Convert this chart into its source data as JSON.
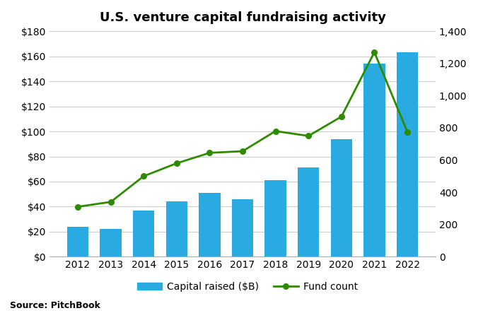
{
  "title": "U.S. venture capital fundraising activity",
  "years": [
    2012,
    2013,
    2014,
    2015,
    2016,
    2017,
    2018,
    2019,
    2020,
    2021,
    2022
  ],
  "capital_raised": [
    24,
    22,
    37,
    44,
    51,
    46,
    61,
    71,
    94,
    154,
    163
  ],
  "fund_count": [
    310,
    340,
    500,
    580,
    645,
    655,
    780,
    750,
    870,
    1270,
    775
  ],
  "bar_color": "#29ABE2",
  "line_color": "#2E8B00",
  "left_ylim": [
    0,
    180
  ],
  "right_ylim": [
    0,
    1400
  ],
  "left_yticks": [
    0,
    20,
    40,
    60,
    80,
    100,
    120,
    140,
    160,
    180
  ],
  "right_yticks": [
    0,
    200,
    400,
    600,
    800,
    1000,
    1200,
    1400
  ],
  "source_text": "Source: PitchBook",
  "legend_bar_label": "Capital raised ($B)",
  "legend_line_label": "Fund count",
  "background_color": "#FFFFFF",
  "grid_color": "#CCCCCC",
  "title_fontsize": 13,
  "tick_fontsize": 10,
  "source_fontsize": 9,
  "bar_width": 0.65
}
